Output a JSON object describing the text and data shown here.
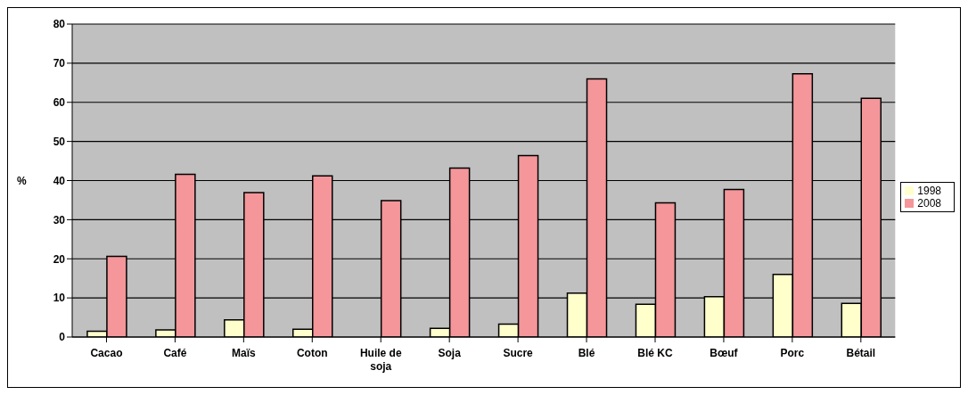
{
  "chart_data": {
    "type": "bar",
    "ylabel": "%",
    "categories": [
      "Cacao",
      "Café",
      "Maïs",
      "Coton",
      "Huile de soja",
      "Soja",
      "Sucre",
      "Blé",
      "Blé KC",
      "Bœuf",
      "Porc",
      "Bétail"
    ],
    "series": [
      {
        "name": "1998",
        "color": "#ffffcc",
        "values": [
          1.5,
          1.8,
          4.4,
          2,
          0,
          2.2,
          3.3,
          11.2,
          8.4,
          10.3,
          16,
          8.6
        ]
      },
      {
        "name": "2008",
        "color": "#f4969a",
        "values": [
          20.6,
          41.6,
          36.9,
          41.2,
          34.9,
          43.2,
          46.4,
          66,
          34.3,
          37.7,
          67.3,
          61
        ]
      }
    ],
    "ylim": [
      0,
      80
    ],
    "yticks": [
      0,
      10,
      20,
      30,
      40,
      50,
      60,
      70,
      80
    ],
    "grid": "y",
    "legend": "right"
  }
}
